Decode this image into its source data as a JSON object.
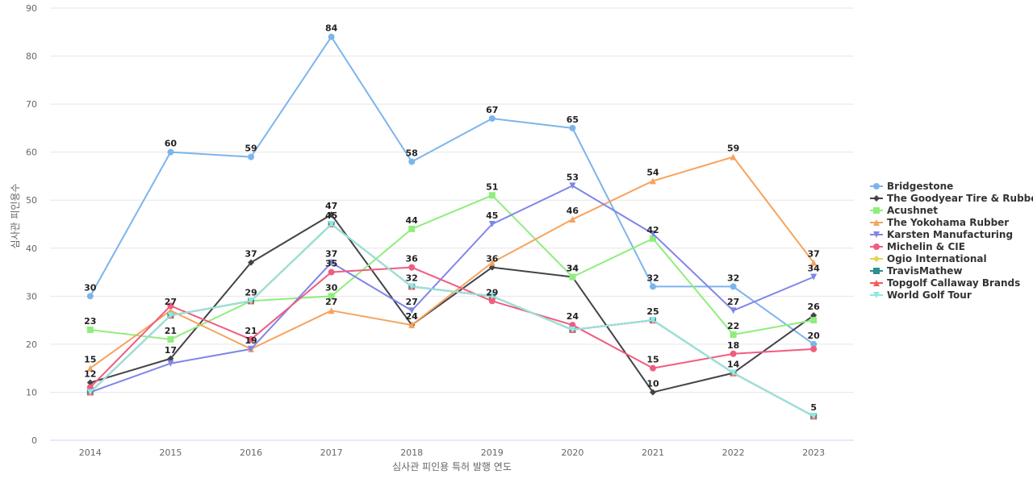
{
  "chart_data": {
    "type": "line",
    "title": "",
    "xlabel": "심사관 피인용 특허 발행 연도",
    "ylabel": "심사관 피인용수",
    "ylim": [
      0,
      90
    ],
    "yticks": [
      0,
      10,
      20,
      30,
      40,
      50,
      60,
      70,
      80,
      90
    ],
    "grid": true,
    "legend_position": "right",
    "categories": [
      "2014",
      "2015",
      "2016",
      "2017",
      "2018",
      "2019",
      "2020",
      "2021",
      "2022",
      "2023"
    ],
    "series": [
      {
        "name": "Bridgestone",
        "color": "#7cb5ec",
        "marker": "circle",
        "values": [
          30,
          60,
          59,
          84,
          58,
          67,
          65,
          32,
          32,
          20
        ]
      },
      {
        "name": "The Goodyear Tire & Rubber",
        "color": "#434348",
        "marker": "diamond",
        "values": [
          12,
          17,
          37,
          47,
          24,
          36,
          34,
          10,
          14,
          26
        ]
      },
      {
        "name": "Acushnet",
        "color": "#90ed7d",
        "marker": "square",
        "values": [
          23,
          21,
          29,
          30,
          44,
          51,
          34,
          42,
          22,
          25
        ]
      },
      {
        "name": "The Yokohama Rubber",
        "color": "#f7a35c",
        "marker": "triangle",
        "values": [
          15,
          27,
          19,
          27,
          24,
          37,
          46,
          54,
          59,
          37
        ]
      },
      {
        "name": "Karsten Manufacturing",
        "color": "#8085e9",
        "marker": "triangle-down",
        "values": [
          10,
          16,
          19,
          37,
          27,
          45,
          53,
          43,
          27,
          34
        ]
      },
      {
        "name": "Michelin & CIE",
        "color": "#f15c80",
        "marker": "circle",
        "values": [
          11,
          28,
          21,
          35,
          36,
          29,
          24,
          15,
          18,
          19
        ]
      },
      {
        "name": "Ogio International",
        "color": "#e4d354",
        "marker": "diamond",
        "values": [
          10,
          26,
          29,
          45,
          32,
          30,
          23,
          25,
          14,
          5
        ]
      },
      {
        "name": "TravisMathew",
        "color": "#2b908f",
        "marker": "square",
        "values": [
          10,
          26,
          29,
          45,
          32,
          30,
          23,
          25,
          14,
          5
        ]
      },
      {
        "name": "Topgolf Callaway Brands",
        "color": "#f45b5b",
        "marker": "triangle",
        "values": [
          10,
          26,
          29,
          45,
          32,
          30,
          23,
          25,
          14,
          5
        ]
      },
      {
        "name": "World Golf Tour",
        "color": "#91e8e1",
        "marker": "triangle-down",
        "values": [
          10,
          26,
          29,
          45,
          32,
          30,
          23,
          25,
          14,
          5
        ]
      }
    ],
    "data_labels": [
      {
        "series": "Bridgestone",
        "values": [
          30,
          60,
          59,
          84,
          58,
          67,
          65,
          32,
          32,
          20
        ]
      },
      {
        "series": "The Goodyear Tire & Rubber",
        "values": [
          12,
          17,
          37,
          47,
          24,
          36,
          34,
          10,
          14,
          26
        ]
      },
      {
        "series": "Acushnet",
        "values": [
          23,
          21,
          29,
          30,
          44,
          51,
          34,
          42,
          22,
          null
        ]
      },
      {
        "series": "The Yokohama Rubber",
        "values": [
          15,
          27,
          19,
          27,
          24,
          null,
          46,
          54,
          59,
          37
        ]
      },
      {
        "series": "Karsten Manufacturing",
        "values": [
          null,
          null,
          null,
          37,
          27,
          45,
          53,
          null,
          27,
          34
        ]
      },
      {
        "series": "Michelin & CIE",
        "values": [
          null,
          null,
          21,
          35,
          36,
          29,
          24,
          15,
          18,
          null
        ]
      },
      {
        "series": "Ogio International",
        "values": [
          null,
          null,
          null,
          45,
          32,
          null,
          null,
          25,
          null,
          5
        ]
      }
    ]
  }
}
